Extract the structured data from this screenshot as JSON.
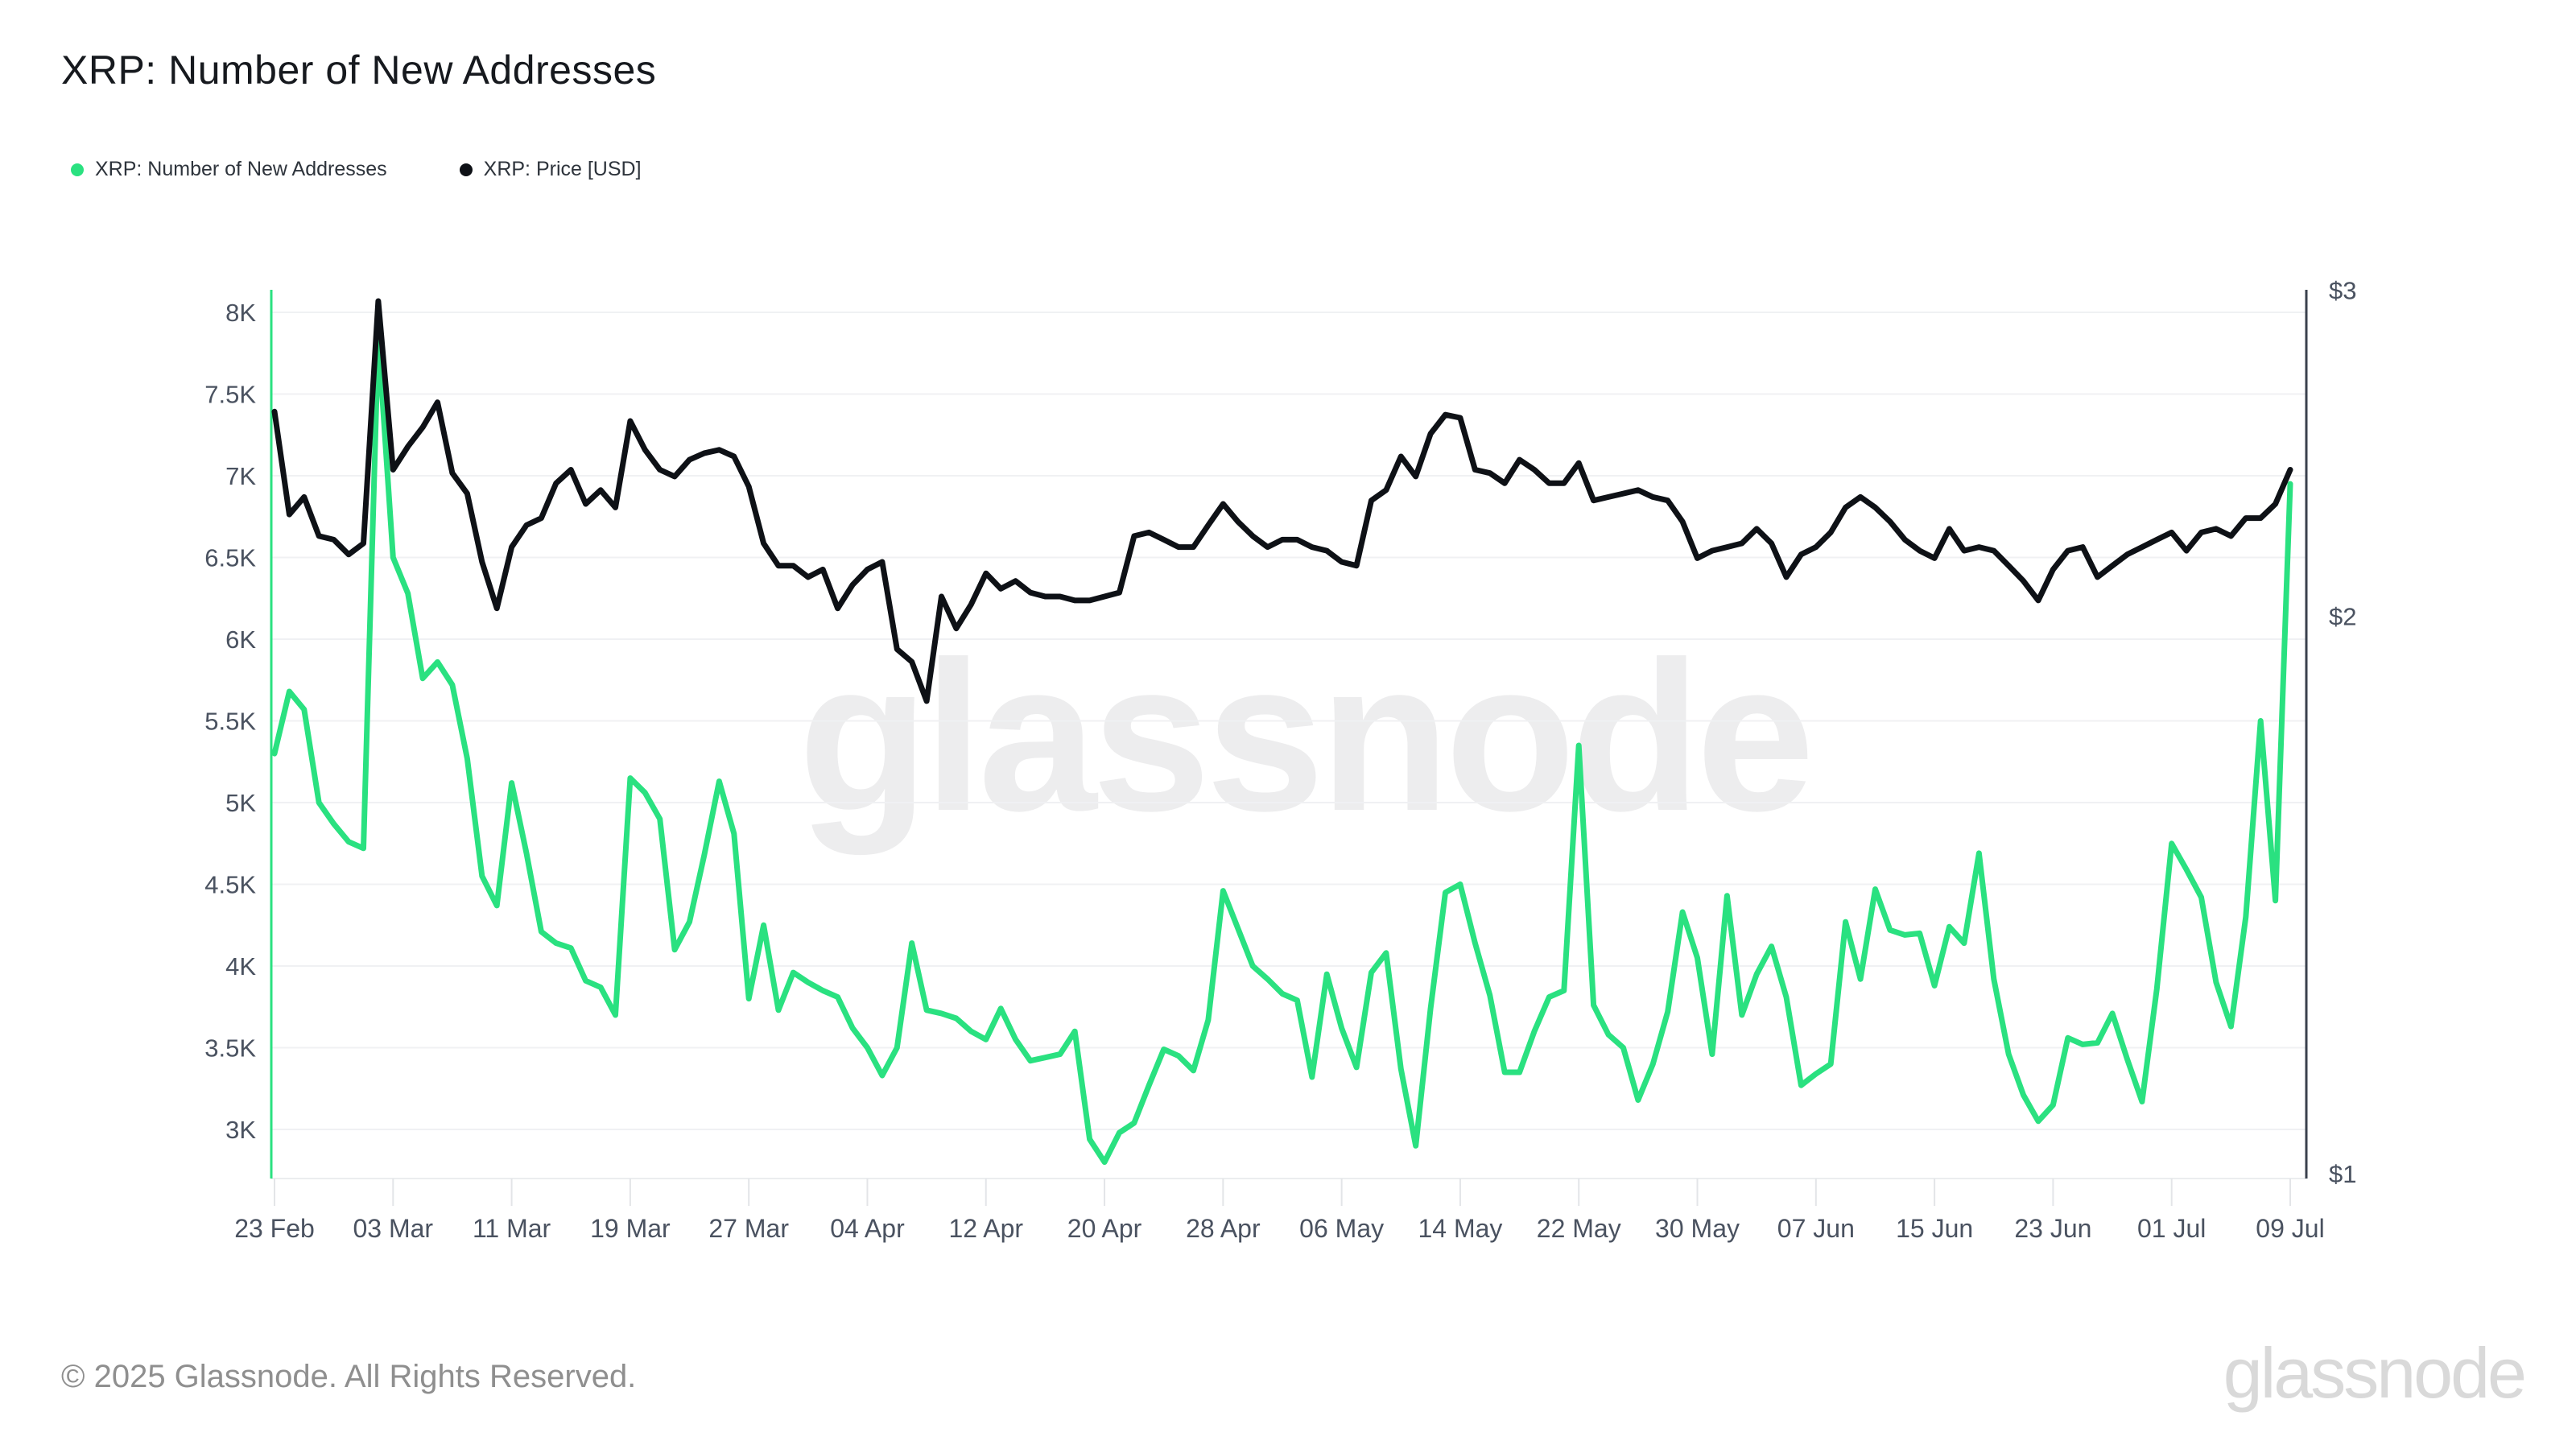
{
  "header": {
    "title": "XRP: Number of New Addresses"
  },
  "legend": [
    {
      "label": "XRP: Number of New Addresses",
      "color": "#2ae180"
    },
    {
      "label": "XRP: Price [USD]",
      "color": "#0e1116"
    }
  ],
  "watermark": "glassnode",
  "footer": {
    "copyright": "© 2025 Glassnode. All Rights Reserved.",
    "logo": "glassnode"
  },
  "chart_data": {
    "type": "line",
    "title": "XRP: Number of New Addresses",
    "x_start_date": "2025-02-23",
    "x_end_date": "2025-07-09",
    "interval": "daily",
    "x_tick_labels": [
      "23 Feb",
      "03 Mar",
      "11 Mar",
      "19 Mar",
      "27 Mar",
      "04 Apr",
      "12 Apr",
      "20 Apr",
      "28 Apr",
      "06 May",
      "14 May",
      "22 May",
      "30 May",
      "07 Jun",
      "15 Jun",
      "23 Jun",
      "01 Jul",
      "09 Jul"
    ],
    "x_tick_day_step": 8,
    "grid": "horizontal",
    "legend_position": "top-left",
    "left_axis": {
      "series": "XRP: Number of New Addresses",
      "scale": "linear",
      "ticks": [
        "8K",
        "7.5K",
        "7K",
        "6.5K",
        "6K",
        "5.5K",
        "5K",
        "4.5K",
        "4K",
        "3.5K",
        "3K"
      ],
      "tick_values": [
        8000,
        7500,
        7000,
        6500,
        6000,
        5500,
        5000,
        4500,
        4000,
        3500,
        3000
      ]
    },
    "right_axis": {
      "series": "XRP: Price [USD]",
      "scale": "log",
      "ticks": [
        "$3",
        "$2",
        "$1"
      ],
      "tick_values": [
        3,
        2,
        1
      ]
    },
    "series": [
      {
        "name": "XRP: Number of New Addresses",
        "axis": "left",
        "color": "#2ae180",
        "values": [
          5300,
          5680,
          5570,
          5000,
          4870,
          4760,
          4720,
          7850,
          6500,
          6280,
          5760,
          5860,
          5720,
          5270,
          4550,
          4370,
          5120,
          4690,
          4210,
          4140,
          4110,
          3910,
          3870,
          3700,
          5150,
          5060,
          4900,
          4100,
          4270,
          4680,
          5130,
          4810,
          3800,
          4250,
          3730,
          3960,
          3900,
          3850,
          3810,
          3620,
          3500,
          3330,
          3500,
          4140,
          3730,
          3710,
          3680,
          3600,
          3550,
          3740,
          3550,
          3420,
          3440,
          3460,
          3600,
          2940,
          2800,
          2980,
          3040,
          3270,
          3490,
          3450,
          3360,
          3670,
          4460,
          4230,
          4000,
          3920,
          3830,
          3790,
          3320,
          3950,
          3620,
          3380,
          3960,
          4080,
          3370,
          2900,
          3740,
          4450,
          4500,
          4140,
          3820,
          3350,
          3350,
          3600,
          3810,
          3850,
          5350,
          3760,
          3580,
          3500,
          3180,
          3400,
          3720,
          4330,
          4050,
          3460,
          4430,
          3700,
          3950,
          4120,
          3810,
          3270,
          3340,
          3400,
          4270,
          3920,
          4470,
          4220,
          4190,
          4200,
          3880,
          4240,
          4140,
          4690,
          3920,
          3460,
          3210,
          3050,
          3150,
          3560,
          3520,
          3530,
          3710,
          3430,
          3170,
          3860,
          4750,
          4590,
          4420,
          3900,
          3630,
          4300,
          5500,
          4400,
          6950
        ]
      },
      {
        "name": "XRP: Price [USD]",
        "axis": "right",
        "color": "#0e1116",
        "values": [
          2.58,
          2.27,
          2.32,
          2.21,
          2.2,
          2.16,
          2.19,
          2.96,
          2.4,
          2.47,
          2.53,
          2.61,
          2.39,
          2.33,
          2.14,
          2.02,
          2.18,
          2.24,
          2.26,
          2.36,
          2.4,
          2.3,
          2.34,
          2.29,
          2.55,
          2.46,
          2.4,
          2.38,
          2.43,
          2.45,
          2.46,
          2.44,
          2.35,
          2.19,
          2.13,
          2.13,
          2.1,
          2.12,
          2.02,
          2.08,
          2.12,
          2.14,
          1.92,
          1.89,
          1.8,
          2.05,
          1.97,
          2.03,
          2.11,
          2.07,
          2.09,
          2.06,
          2.05,
          2.05,
          2.04,
          2.04,
          2.05,
          2.06,
          2.21,
          2.22,
          2.2,
          2.18,
          2.18,
          2.24,
          2.3,
          2.25,
          2.21,
          2.18,
          2.2,
          2.2,
          2.18,
          2.17,
          2.14,
          2.13,
          2.31,
          2.34,
          2.44,
          2.38,
          2.51,
          2.57,
          2.56,
          2.4,
          2.39,
          2.36,
          2.43,
          2.4,
          2.36,
          2.36,
          2.42,
          2.31,
          2.32,
          2.33,
          2.34,
          2.32,
          2.31,
          2.25,
          2.15,
          2.17,
          2.18,
          2.19,
          2.23,
          2.19,
          2.1,
          2.16,
          2.18,
          2.22,
          2.29,
          2.32,
          2.29,
          2.25,
          2.2,
          2.17,
          2.15,
          2.23,
          2.17,
          2.18,
          2.17,
          2.13,
          2.09,
          2.04,
          2.12,
          2.17,
          2.18,
          2.1,
          2.13,
          2.16,
          2.18,
          2.2,
          2.22,
          2.17,
          2.22,
          2.23,
          2.21,
          2.26,
          2.26,
          2.3,
          2.4
        ]
      }
    ]
  }
}
